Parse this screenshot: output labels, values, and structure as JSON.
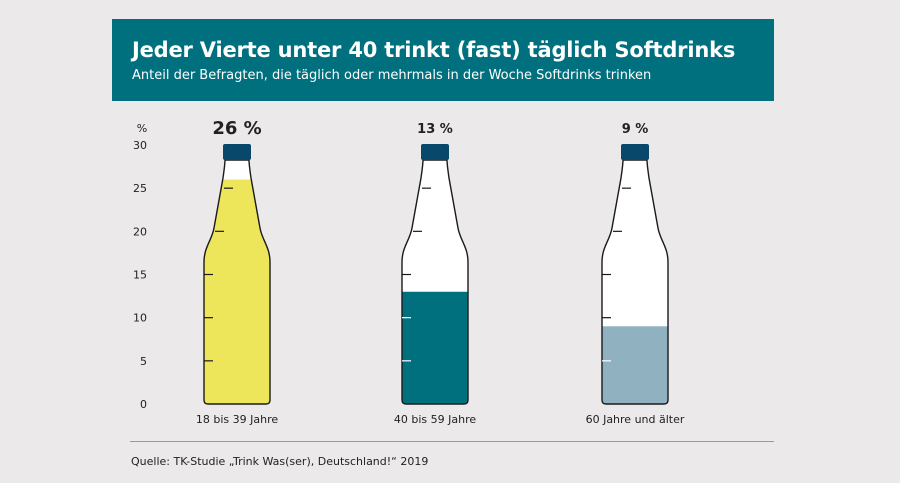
{
  "header": {
    "title": "Jeder Vierte unter 40 trinkt (fast) täglich Softdrinks",
    "subtitle": "Anteil der Befragten, die täglich oder mehrmals in der Woche Softdrinks trinken"
  },
  "source": "Quelle: TK-Studie „Trink Was(ser), Deutschland!“ 2019",
  "chart_data": {
    "type": "bar",
    "title": "Jeder Vierte unter 40 trinkt (fast) täglich Softdrinks",
    "subtitle": "Anteil der Befragten, die täglich oder mehrmals in der Woche Softdrinks trinken",
    "ylabel": "%",
    "ylim": [
      0,
      30
    ],
    "yticks": [
      0,
      5,
      10,
      15,
      20,
      25,
      30
    ],
    "categories": [
      "18 bis 39 Jahre",
      "40 bis 59 Jahre",
      "60 Jahre und älter"
    ],
    "values": [
      26,
      13,
      9
    ],
    "value_labels": [
      "26 %",
      "13 %",
      "9 %"
    ],
    "colors": [
      "#eee65a",
      "#00707f",
      "#8fb1c0"
    ],
    "cap_color": "#07486b",
    "grid": false,
    "legend": "none"
  }
}
